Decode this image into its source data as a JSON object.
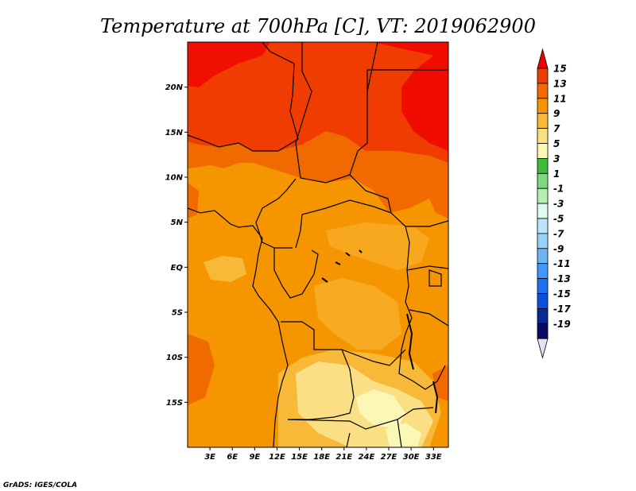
{
  "chart_data": {
    "type": "heatmap",
    "title": "Temperature at 700hPa [C], VT: 2019062900",
    "x_ticks": [
      "3E",
      "6E",
      "9E",
      "12E",
      "15E",
      "18E",
      "21E",
      "24E",
      "27E",
      "30E",
      "33E"
    ],
    "y_ticks": [
      "20N",
      "15N",
      "10N",
      "5N",
      "EQ",
      "5S",
      "10S",
      "15S"
    ],
    "xlim": [
      0,
      35
    ],
    "ylim": [
      -20,
      25
    ],
    "colorbar_levels": [
      15,
      13,
      11,
      9,
      7,
      5,
      3,
      1,
      -1,
      -3,
      -5,
      -7,
      -9,
      -11,
      -13,
      -15,
      -17,
      -19
    ],
    "colorbar_colors": [
      "#f00000",
      "#f03c00",
      "#f06a00",
      "#f59600",
      "#f8b838",
      "#fadf84",
      "#fbf7b5",
      "#3cbe3c",
      "#7ed87e",
      "#b4eeb4",
      "#e0faef",
      "#bde4fa",
      "#96d1fa",
      "#6eb4f0",
      "#4196ff",
      "#1e6ef0",
      "#0a50dc",
      "#0a2896",
      "#0a0a64",
      "#e1e1fa"
    ],
    "colorbar_position": "right",
    "grid": false
  },
  "credit": "GrADS: IGES/COLA"
}
